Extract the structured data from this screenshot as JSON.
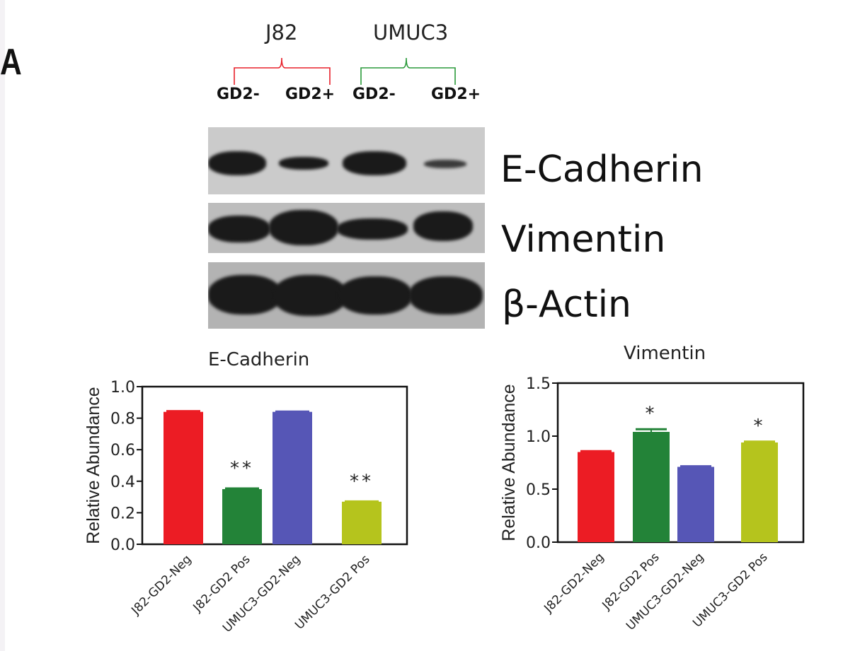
{
  "panel_label": "A",
  "groups": [
    {
      "name": "J82",
      "color": "#e8202a"
    },
    {
      "name": "UMUC3",
      "color": "#2a9a3a"
    }
  ],
  "lanes": [
    "GD2-",
    "GD2+",
    "GD2-",
    "GD2+"
  ],
  "blots": [
    {
      "label": "E-Cadherin",
      "intensity": [
        1.0,
        0.6,
        1.0,
        0.35
      ]
    },
    {
      "label": "Vimentin",
      "intensity": [
        0.95,
        1.0,
        0.85,
        0.9
      ]
    },
    {
      "label": "β-Actin",
      "intensity": [
        1.0,
        1.0,
        1.0,
        1.0
      ]
    }
  ],
  "chart_data": [
    {
      "type": "bar",
      "title": "E-Cadherin",
      "xlabel": "",
      "ylabel": "Relative Abundance",
      "ylim": [
        0,
        1.0
      ],
      "yticks": [
        "0.0",
        "0.2",
        "0.4",
        "0.6",
        "0.8",
        "1.0"
      ],
      "categories": [
        "J82-GD2-Neg",
        "J82-GD2 Pos",
        "UMUC3-GD2-Neg",
        "UMUC3-GD2 Pos"
      ],
      "values": [
        0.84,
        0.35,
        0.84,
        0.27
      ],
      "errors": [
        0.005,
        0.004,
        0.002,
        0.002
      ],
      "colors": [
        "#ec1c24",
        "#238338",
        "#5656b6",
        "#b5c41d"
      ],
      "annotations": [
        "",
        "**",
        "",
        "**"
      ],
      "grid": false
    },
    {
      "type": "bar",
      "title": "Vimentin",
      "xlabel": "",
      "ylabel": "Relative Abundance",
      "ylim": [
        0,
        1.5
      ],
      "yticks": [
        "0.0",
        "0.5",
        "1.0",
        "1.5"
      ],
      "categories": [
        "J82-GD2-Neg",
        "J82-GD2 Pos",
        "UMUC3-GD2-Neg",
        "UMUC3-GD2 Pos"
      ],
      "values": [
        0.85,
        1.04,
        0.71,
        0.94
      ],
      "errors": [
        0.008,
        0.025,
        0.006,
        0.008
      ],
      "colors": [
        "#ec1c24",
        "#238338",
        "#5656b6",
        "#b5c41d"
      ],
      "annotations": [
        "",
        "*",
        "",
        "*"
      ],
      "grid": false
    }
  ]
}
